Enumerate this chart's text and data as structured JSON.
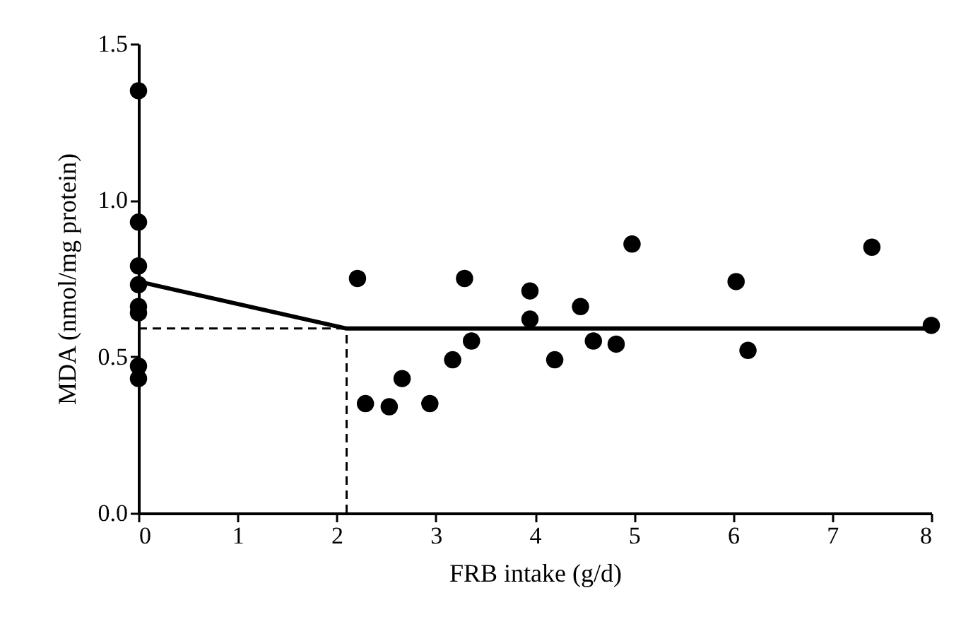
{
  "chart_data": {
    "type": "scatter",
    "xlabel": "FRB intake (g/d)",
    "ylabel": "MDA (nmol/mg protein)",
    "xlim": [
      0,
      8
    ],
    "xticks": [
      0,
      1,
      2,
      3,
      4,
      5,
      6,
      7,
      8
    ],
    "ylim": [
      0,
      1.5
    ],
    "yticks": [
      {
        "value": 0,
        "label": "0.0"
      },
      {
        "value": 0.5,
        "label": "0.5"
      },
      {
        "value": 1,
        "label": "1.0"
      },
      {
        "value": 1.5,
        "label": "1.5"
      }
    ],
    "grid": false,
    "marker": "circle",
    "series": [
      {
        "color": "#000000",
        "x": [
          0,
          0,
          0,
          0,
          0,
          0,
          0,
          0,
          2.21,
          2.29,
          2.53,
          2.66,
          2.94,
          3.17,
          3.29,
          3.36,
          3.95,
          3.95,
          4.46,
          4.2,
          4.59,
          4.82,
          4.98,
          6.03,
          6.15,
          7.4,
          8.0
        ],
        "values": [
          1.35,
          0.93,
          0.79,
          0.73,
          0.66,
          0.64,
          0.47,
          0.43,
          0.75,
          0.35,
          0.34,
          0.43,
          0.35,
          0.49,
          0.75,
          0.55,
          0.71,
          0.62,
          0.66,
          0.49,
          0.55,
          0.54,
          0.86,
          0.74,
          0.52,
          0.85,
          0.6
        ]
      },
      {
        "type": "line",
        "color": "#000000",
        "line_style": "solid",
        "marker": "none",
        "x": [
          0,
          2.1,
          8
        ],
        "values": [
          0.74,
          0.59,
          0.59
        ]
      },
      {
        "type": "line",
        "color": "#000000",
        "line_style": "dashed",
        "marker": "none",
        "x": [
          0,
          2.1
        ],
        "values": [
          0.59,
          0.59
        ]
      },
      {
        "type": "line",
        "color": "#000000",
        "line_style": "dashed",
        "marker": "none",
        "x": [
          2.1,
          2.1
        ],
        "values": [
          0,
          0.59
        ]
      }
    ]
  }
}
